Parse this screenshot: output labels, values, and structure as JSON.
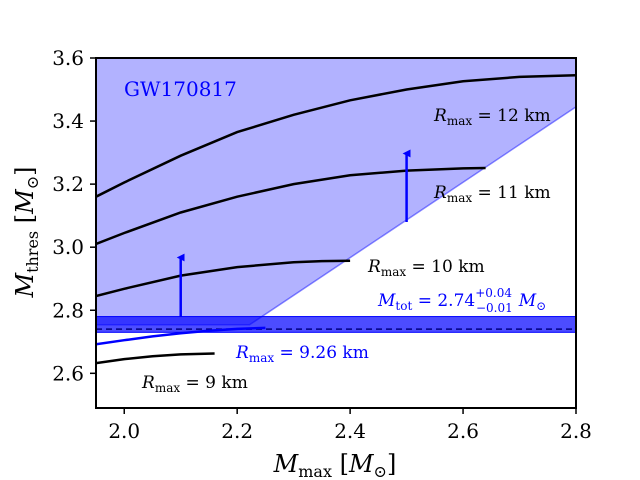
{
  "chart_data": {
    "type": "line",
    "title": "",
    "event_label": "GW170817",
    "xlabel": {
      "symbol": "M",
      "sub": "max",
      "unit": "M",
      "unit_sub": "⊙"
    },
    "ylabel": {
      "symbol": "M",
      "sub": "thres",
      "unit": "M",
      "unit_sub": "⊙"
    },
    "xlim": [
      1.95,
      2.8
    ],
    "ylim": [
      2.49,
      3.6
    ],
    "xticks": [
      2.0,
      2.2,
      2.4,
      2.6,
      2.8
    ],
    "xtick_labels": [
      "2.0",
      "2.2",
      "2.4",
      "2.6",
      "2.8"
    ],
    "yticks": [
      2.6,
      2.8,
      3.0,
      3.2,
      3.4,
      3.6
    ],
    "ytick_labels": [
      "2.6",
      "2.8",
      "3.0",
      "3.2",
      "3.4",
      "3.6"
    ],
    "shaded_region": {
      "color": "#0000ff",
      "polygon_vertices": [
        [
          1.95,
          3.6
        ],
        [
          2.8,
          3.6
        ],
        [
          2.8,
          3.445
        ],
        [
          2.222,
          2.754
        ],
        [
          1.95,
          2.754
        ]
      ]
    },
    "total_mass_band": {
      "value": 2.74,
      "upper": 0.04,
      "lower": 0.01,
      "label_main": "M",
      "label_sub": "tot",
      "label_eq": " = 2.74",
      "label_sup": "+0.04",
      "label_inf": "−0.01",
      "label_unit": "M",
      "label_unit_sub": "⊙",
      "color": "#0000ff"
    },
    "arrows": [
      {
        "x": 2.1,
        "y_from": 2.78,
        "y_to": 2.98
      },
      {
        "x": 2.5,
        "y_from": 3.08,
        "y_to": 3.31
      }
    ],
    "series": [
      {
        "name": "R_max = 12 km",
        "color": "#000000",
        "label_sym": "R",
        "label_sub": "max",
        "label_value": " = 12 km",
        "x": [
          1.95,
          2.0,
          2.1,
          2.2,
          2.3,
          2.4,
          2.5,
          2.6,
          2.7,
          2.8
        ],
        "y": [
          3.16,
          3.205,
          3.29,
          3.365,
          3.42,
          3.466,
          3.5,
          3.526,
          3.54,
          3.545
        ]
      },
      {
        "name": "R_max = 11 km",
        "color": "#000000",
        "label_sym": "R",
        "label_sub": "max",
        "label_value": " = 11 km",
        "x": [
          1.95,
          2.0,
          2.1,
          2.2,
          2.3,
          2.4,
          2.5,
          2.6,
          2.64
        ],
        "y": [
          3.01,
          3.045,
          3.11,
          3.16,
          3.2,
          3.228,
          3.243,
          3.25,
          3.251
        ]
      },
      {
        "name": "R_max = 10 km",
        "color": "#000000",
        "label_sym": "R",
        "label_sub": "max",
        "label_value": " = 10 km",
        "x": [
          1.95,
          2.0,
          2.1,
          2.2,
          2.3,
          2.35,
          2.4
        ],
        "y": [
          2.845,
          2.868,
          2.91,
          2.937,
          2.952,
          2.956,
          2.957
        ]
      },
      {
        "name": "R_max = 9.26 km",
        "color": "#0000ff",
        "label_sym": "R",
        "label_sub": "max",
        "label_value": " = 9.26 km",
        "x": [
          1.95,
          2.0,
          2.05,
          2.1,
          2.15,
          2.2,
          2.25
        ],
        "y": [
          2.692,
          2.705,
          2.717,
          2.727,
          2.735,
          2.741,
          2.744
        ]
      },
      {
        "name": "R_max = 9 km",
        "color": "#000000",
        "label_sym": "R",
        "label_sub": "max",
        "label_value": " = 9 km",
        "x": [
          1.95,
          2.0,
          2.05,
          2.1,
          2.16
        ],
        "y": [
          2.632,
          2.645,
          2.654,
          2.66,
          2.663
        ]
      }
    ]
  }
}
